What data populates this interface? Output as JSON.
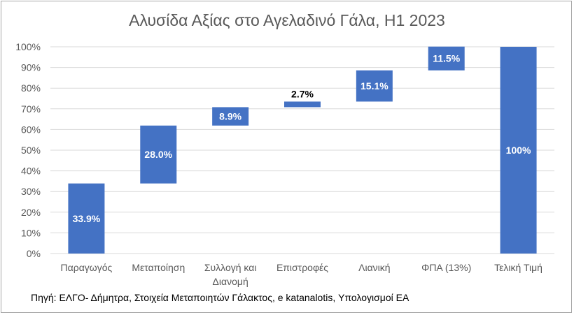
{
  "chart_data": {
    "type": "bar",
    "subtype": "waterfall",
    "title": "Αλυσίδα Αξίας στο Αγελαδινό Γάλα, H1 2023",
    "xlabel": "",
    "ylabel": "",
    "ylim": [
      0,
      100
    ],
    "y_ticks": [
      "0%",
      "10%",
      "20%",
      "30%",
      "40%",
      "50%",
      "60%",
      "70%",
      "80%",
      "90%",
      "100%"
    ],
    "grid": true,
    "legend": "none",
    "bar_color": "#4472C4",
    "categories": [
      {
        "label": [
          "Παραγωγός"
        ],
        "base": 0,
        "value": 33.9,
        "data_label": "33.9%"
      },
      {
        "label": [
          "Μεταποίηση"
        ],
        "base": 33.9,
        "value": 28.0,
        "data_label": "28.0%"
      },
      {
        "label": [
          "Συλλογή και",
          "Διανομή"
        ],
        "base": 61.9,
        "value": 8.9,
        "data_label": "8.9%"
      },
      {
        "label": [
          "Επιστροφές"
        ],
        "base": 70.8,
        "value": 2.7,
        "data_label": "2.7%"
      },
      {
        "label": [
          "Λιανική"
        ],
        "base": 73.5,
        "value": 15.1,
        "data_label": "15.1%"
      },
      {
        "label": [
          "ΦΠΑ (13%)"
        ],
        "base": 88.6,
        "value": 11.5,
        "data_label": "11.5%"
      },
      {
        "label": [
          "Τελική Τιμή"
        ],
        "base": 0,
        "value": 100,
        "data_label": "100%"
      }
    ]
  },
  "source": "Πηγή: ΕΛΓΟ- Δήμητρα, Στοιχεία Μεταποιητών Γάλακτος, e katanalotis, Υπολογισμοί ΕΑ"
}
